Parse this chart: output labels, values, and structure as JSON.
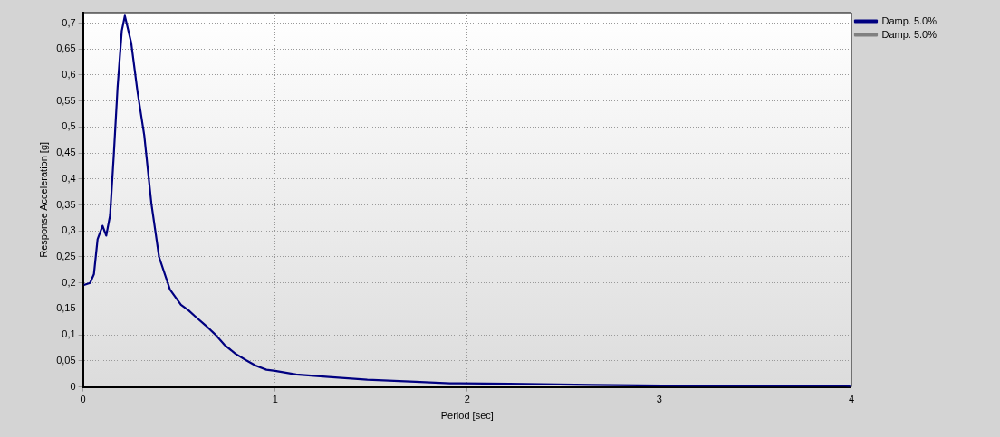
{
  "chart_data": {
    "type": "line",
    "xlabel": "Period [sec]",
    "ylabel": "Response Acceleration [g]",
    "x": [
      0.005,
      0.037,
      0.057,
      0.076,
      0.102,
      0.121,
      0.141,
      0.16,
      0.18,
      0.202,
      0.218,
      0.251,
      0.283,
      0.319,
      0.356,
      0.396,
      0.453,
      0.51,
      0.55,
      0.583,
      0.639,
      0.688,
      0.736,
      0.793,
      0.85,
      0.898,
      0.955,
      1.0,
      1.11,
      1.28,
      1.48,
      1.73,
      1.91,
      2.22,
      2.65,
      3.14,
      3.97,
      4.0
    ],
    "series": [
      {
        "name": "Damp. 5.0%",
        "color": "#000080",
        "values": [
          0.196,
          0.2,
          0.217,
          0.284,
          0.31,
          0.291,
          0.33,
          0.444,
          0.576,
          0.685,
          0.714,
          0.662,
          0.57,
          0.484,
          0.353,
          0.25,
          0.187,
          0.158,
          0.147,
          0.136,
          0.118,
          0.101,
          0.081,
          0.064,
          0.051,
          0.041,
          0.033,
          0.031,
          0.024,
          0.019,
          0.014,
          0.01,
          0.007,
          0.006,
          0.004,
          0.002,
          0.002,
          0.0
        ]
      },
      {
        "name": "Damp. 5.0%",
        "color": "#808080",
        "values": [
          null,
          null,
          null,
          null,
          null,
          null,
          null,
          null,
          null,
          null,
          null,
          null,
          null,
          null,
          null,
          null,
          null,
          null,
          null,
          null,
          null,
          null,
          null,
          null,
          null,
          null,
          null,
          null,
          null,
          null,
          null,
          null,
          null,
          null,
          null,
          null,
          null,
          null
        ]
      }
    ],
    "xlim": [
      0,
      4
    ],
    "xticks": [
      0,
      1,
      2,
      3,
      4
    ],
    "ylim": [
      0,
      0.72
    ],
    "yticks": [
      0,
      {
        "value": 0.05,
        "label": "0,05"
      },
      {
        "value": 0.1,
        "label": "0,1"
      },
      {
        "value": 0.15,
        "label": "0,15"
      },
      {
        "value": 0.2,
        "label": "0,2"
      },
      {
        "value": 0.25,
        "label": "0,25"
      },
      {
        "value": 0.3,
        "label": "0,3"
      },
      {
        "value": 0.35,
        "label": "0,35"
      },
      {
        "value": 0.4,
        "label": "0,4"
      },
      {
        "value": 0.45,
        "label": "0,45"
      },
      {
        "value": 0.5,
        "label": "0,5"
      },
      {
        "value": 0.55,
        "label": "0,55"
      },
      {
        "value": 0.6,
        "label": "0,6"
      },
      {
        "value": 0.65,
        "label": "0,65"
      },
      {
        "value": 0.7,
        "label": "0,7"
      }
    ],
    "grid": true,
    "legend": "top right",
    "marker": "none",
    "line_style": "solid"
  }
}
